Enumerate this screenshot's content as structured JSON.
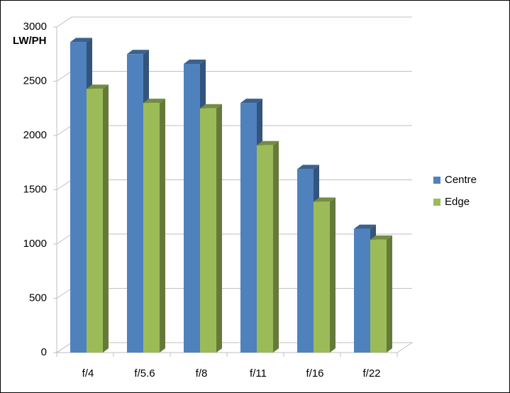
{
  "chart_data": {
    "type": "bar3d",
    "y_label": "LW/PH",
    "categories": [
      "f/4",
      "f/5.6",
      "f/8",
      "f/11",
      "f/16",
      "f/22"
    ],
    "series": [
      {
        "name": "Centre",
        "color": "#4f81bd",
        "values": [
          2860,
          2750,
          2660,
          2300,
          1690,
          1140
        ]
      },
      {
        "name": "Edge",
        "color": "#9bbb59",
        "values": [
          2430,
          2300,
          2250,
          1910,
          1390,
          1040
        ]
      }
    ],
    "ylim": [
      0,
      3000
    ],
    "yticks": [
      0,
      500,
      1000,
      1500,
      2000,
      2500,
      3000
    ],
    "grid": true,
    "legend": "right"
  }
}
